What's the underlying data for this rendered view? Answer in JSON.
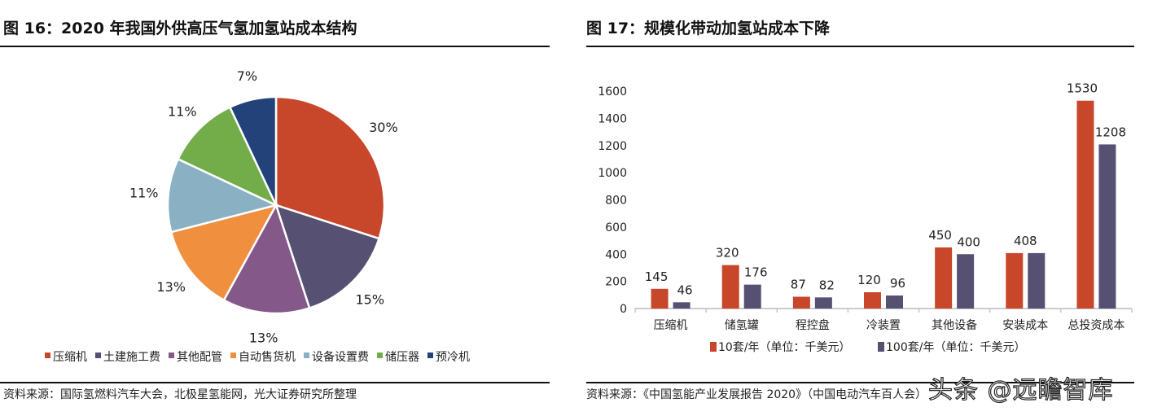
{
  "left": {
    "title": "图 16：2020 年我国外供高压气氢加氢站成本结构",
    "source": "资料来源：国际氢燃料汽车大会，北极星氢能网，光大证券研究所整理"
  },
  "right": {
    "title": "图 17：规模化带动加氢站成本下降",
    "source": "资料来源：《中国氢能产业发展报告 2020》（中国电动汽车百人会）"
  },
  "watermark": "头条 @远瞻智库",
  "chart_data": [
    {
      "type": "pie",
      "title": "",
      "legend_position": "bottom",
      "start": "top, clockwise",
      "categories": [
        "压缩机",
        "土建施工费",
        "其他配管",
        "自动售货机",
        "设备设置费",
        "储压器",
        "预冷机"
      ],
      "values": [
        30,
        15,
        13,
        13,
        11,
        11,
        7
      ],
      "labels": [
        "30%",
        "15%",
        "13%",
        "13%",
        "11%",
        "11%",
        "7%"
      ],
      "colors": [
        "#C8462A",
        "#565073",
        "#85588A",
        "#F0903F",
        "#8AB0C4",
        "#72AD4A",
        "#23427A"
      ]
    },
    {
      "type": "bar",
      "title": "",
      "xlabel": "",
      "ylabel": "",
      "ylim": [
        0,
        1600
      ],
      "yticks": [
        0,
        200,
        400,
        600,
        800,
        1000,
        1200,
        1400,
        1600
      ],
      "grid": false,
      "legend_position": "bottom",
      "categories": [
        "压缩机",
        "储氢罐",
        "程控盘",
        "冷装置",
        "其他设备",
        "安装成本",
        "总投资成本"
      ],
      "series": [
        {
          "name": "10套/年（单位：千美元）",
          "color": "#C8462A",
          "values": [
            145,
            320,
            87,
            120,
            450,
            408,
            1530
          ],
          "labels": [
            "145",
            "320",
            "87",
            "120",
            "450",
            "",
            "1530"
          ]
        },
        {
          "name": "100套/年（单位：千美元）",
          "color": "#565073",
          "values": [
            46,
            176,
            82,
            96,
            400,
            408,
            1208
          ],
          "labels": [
            "46",
            "176",
            "82",
            "96",
            "400",
            "",
            "1208"
          ]
        }
      ],
      "shared_labels": [
        "",
        "",
        "",
        "",
        "",
        "408",
        ""
      ]
    }
  ]
}
